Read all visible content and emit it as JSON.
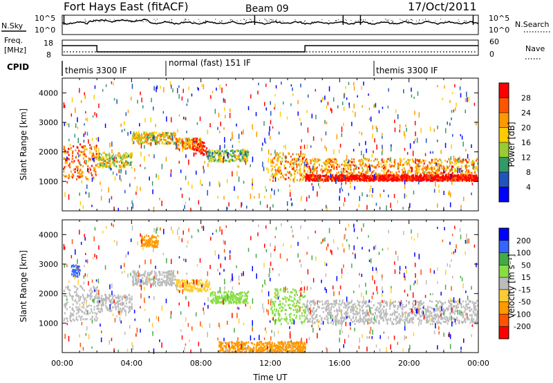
{
  "header": {
    "station": "Fort Hays East (fitACF)",
    "beam": "Beam 09",
    "date": "17/Oct/2011"
  },
  "top_panels": {
    "nsky_label": "N.Sky",
    "nsearch_label": "N.Search",
    "noise_tick_top": "10^5",
    "noise_tick_bottom": "10^0",
    "freq_label_line1": "Freq.",
    "freq_label_line2": "[MHz]",
    "freq_tick_top": "18",
    "freq_tick_bottom": "8",
    "nave_label": "Nave",
    "nave_tick_top": "60",
    "nave_tick_bottom": "0",
    "cpid_label": "CPID",
    "cpid_segments": [
      {
        "label": "themis 3300 IF",
        "start_hour": 0
      },
      {
        "label": "normal (fast) 151 IF",
        "start_hour": 6
      },
      {
        "label": "themis 3300 IF",
        "start_hour": 18
      }
    ]
  },
  "power_colorbar": {
    "title": "Power [dB]",
    "ticks": [
      "28",
      "24",
      "20",
      "16",
      "12",
      "8",
      "4"
    ],
    "colors": [
      "#ff0000",
      "#ff5500",
      "#ff9900",
      "#ffcc00",
      "#99cc33",
      "#339966",
      "#2255bb",
      "#0000ff"
    ]
  },
  "velocity_colorbar": {
    "title": "Velocity [m s⁻¹]",
    "ticks": [
      "200",
      "100",
      "50",
      "15",
      "-15",
      "-50",
      "-100",
      "-200"
    ],
    "colors": [
      "#0000ff",
      "#3366ff",
      "#44aa44",
      "#88dd44",
      "#bbbbbb",
      "#ffcc33",
      "#ff9900",
      "#ff5500",
      "#ff0000"
    ]
  },
  "chart_data": [
    {
      "type": "heatmap",
      "quantity": "Power",
      "ylabel": "Slant Range [km]",
      "yticks": [
        1000,
        2000,
        3000,
        4000
      ],
      "ylim": [
        0,
        4500
      ],
      "xlim": [
        0,
        24
      ],
      "scatter_bands": [
        {
          "x0": 0.0,
          "x1": 2.0,
          "r0": 1100,
          "r1": 2300,
          "level": 22
        },
        {
          "x0": 2.0,
          "x1": 4.0,
          "r0": 1500,
          "r1": 2000,
          "level": 14
        },
        {
          "x0": 4.0,
          "x1": 6.5,
          "r0": 2300,
          "r1": 2700,
          "level": 16
        },
        {
          "x0": 6.5,
          "x1": 8.0,
          "r0": 2100,
          "r1": 2500,
          "level": 18
        },
        {
          "x0": 7.5,
          "x1": 8.3,
          "r0": 1900,
          "r1": 2400,
          "level": 28
        },
        {
          "x0": 8.3,
          "x1": 10.7,
          "r0": 1700,
          "r1": 2100,
          "level": 12
        },
        {
          "x0": 12.0,
          "x1": 14.0,
          "r0": 1050,
          "r1": 2000,
          "level": 20
        },
        {
          "x0": 14.0,
          "x1": 24.0,
          "r0": 1050,
          "r1": 1800,
          "level": 20
        },
        {
          "x0": 14.0,
          "x1": 24.0,
          "r0": 1050,
          "r1": 1250,
          "level": 30
        }
      ]
    },
    {
      "type": "heatmap",
      "quantity": "Velocity",
      "xlabel": "Time UT",
      "ylabel": "Slant Range [km]",
      "yticks": [
        1000,
        2000,
        3000,
        4000
      ],
      "ylim": [
        0,
        4500
      ],
      "xlim": [
        0,
        24
      ],
      "xticks": [
        "00:00",
        "04:00",
        "08:00",
        "12:00",
        "16:00",
        "20:00",
        "00:00"
      ],
      "scatter_bands": [
        {
          "x0": 0.0,
          "x1": 2.0,
          "r0": 1100,
          "r1": 2300,
          "level": 0
        },
        {
          "x0": 0.5,
          "x1": 1.0,
          "r0": 2600,
          "r1": 3000,
          "level": 150
        },
        {
          "x0": 2.0,
          "x1": 4.0,
          "r0": 1400,
          "r1": 2000,
          "level": 0
        },
        {
          "x0": 4.0,
          "x1": 6.5,
          "r0": 2300,
          "r1": 2800,
          "level": 0
        },
        {
          "x0": 4.5,
          "x1": 5.5,
          "r0": 3600,
          "r1": 4000,
          "level": -60
        },
        {
          "x0": 6.5,
          "x1": 8.5,
          "r0": 2100,
          "r1": 2500,
          "level": -30
        },
        {
          "x0": 8.5,
          "x1": 10.7,
          "r0": 1700,
          "r1": 2100,
          "level": 40
        },
        {
          "x0": 12.0,
          "x1": 14.0,
          "r0": 1000,
          "r1": 2200,
          "level": 40
        },
        {
          "x0": 14.0,
          "x1": 24.0,
          "r0": 1000,
          "r1": 1800,
          "level": 0
        },
        {
          "x0": 9.0,
          "x1": 14.0,
          "r0": 50,
          "r1": 400,
          "level": -60
        }
      ]
    }
  ]
}
